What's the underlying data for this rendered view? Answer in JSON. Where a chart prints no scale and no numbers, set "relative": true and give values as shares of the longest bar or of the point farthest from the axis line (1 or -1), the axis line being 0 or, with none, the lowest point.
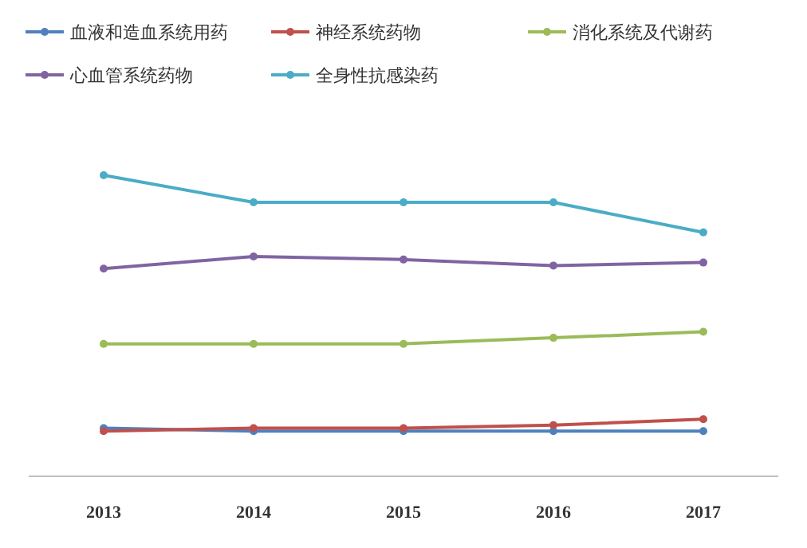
{
  "chart_data": {
    "type": "line",
    "relative": true,
    "categories": [
      "2013",
      "2014",
      "2015",
      "2016",
      "2017"
    ],
    "legend": "top",
    "marker": "circle",
    "line_style": "solid",
    "series": [
      {
        "name": "血液和造血系统用药",
        "color": "#4f81bd",
        "values": [
          0.16,
          0.15,
          0.15,
          0.15,
          0.15
        ]
      },
      {
        "name": "神经系统药物",
        "color": "#c0504d",
        "values": [
          0.15,
          0.16,
          0.16,
          0.17,
          0.19
        ]
      },
      {
        "name": "消化系统及代谢药",
        "color": "#9bbb59",
        "values": [
          0.44,
          0.44,
          0.44,
          0.46,
          0.48
        ]
      },
      {
        "name": "心血管系统药物",
        "color": "#8064a2",
        "values": [
          0.69,
          0.73,
          0.72,
          0.7,
          0.71
        ]
      },
      {
        "name": "全身性抗感染药",
        "color": "#4bacc6",
        "values": [
          1,
          0.91,
          0.91,
          0.91,
          0.81
        ]
      }
    ]
  }
}
